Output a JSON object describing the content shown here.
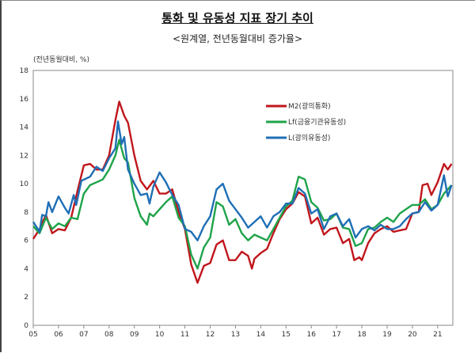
{
  "header": {
    "title": "통화 및 유동성 지표 장기 추이",
    "subtitle": "<원계열, 전년동월대비 증가율>"
  },
  "chart_data": {
    "type": "line",
    "title": "통화 및 유동성 지표 장기 추이",
    "subtitle": "<원계열, 전년동월대비 증가율>",
    "ylabel": "(전년동월대비, %)",
    "xlabel": "",
    "xlim": [
      2005,
      2021.6
    ],
    "ylim": [
      0,
      18
    ],
    "yticks": [
      0,
      2,
      4,
      6,
      8,
      10,
      12,
      14,
      16,
      18
    ],
    "xticks": [
      2005,
      2006,
      2007,
      2008,
      2009,
      2010,
      2011,
      2012,
      2013,
      2014,
      2015,
      2016,
      2017,
      2018,
      2019,
      2020,
      2021
    ],
    "xtick_labels": [
      "05",
      "06",
      "07",
      "08",
      "09",
      "10",
      "11",
      "12",
      "13",
      "14",
      "15",
      "16",
      "17",
      "18",
      "19",
      "20",
      "21"
    ],
    "grid": false,
    "legend_position": "top-right",
    "series": [
      {
        "name": "M2(광의통화)",
        "color": "#c0161c",
        "x": [
          2005.0,
          2005.25,
          2005.5,
          2005.75,
          2006.0,
          2006.25,
          2006.5,
          2006.75,
          2007.0,
          2007.25,
          2007.5,
          2007.75,
          2008.0,
          2008.25,
          2008.4,
          2008.6,
          2008.75,
          2009.0,
          2009.25,
          2009.5,
          2009.75,
          2010.0,
          2010.25,
          2010.5,
          2010.75,
          2011.0,
          2011.25,
          2011.5,
          2011.75,
          2012.0,
          2012.25,
          2012.5,
          2012.75,
          2013.0,
          2013.25,
          2013.5,
          2013.65,
          2013.75,
          2014.0,
          2014.25,
          2014.5,
          2014.75,
          2015.0,
          2015.25,
          2015.5,
          2015.75,
          2016.0,
          2016.25,
          2016.5,
          2016.75,
          2017.0,
          2017.25,
          2017.5,
          2017.7,
          2017.9,
          2018.0,
          2018.25,
          2018.5,
          2018.75,
          2019.0,
          2019.25,
          2019.5,
          2019.75,
          2020.0,
          2020.25,
          2020.4,
          2020.6,
          2020.75,
          2021.0,
          2021.25,
          2021.4,
          2021.55
        ],
        "values": [
          6.1,
          6.8,
          7.8,
          6.5,
          6.8,
          6.7,
          7.6,
          9.5,
          11.3,
          11.4,
          11.0,
          11.0,
          12.0,
          14.5,
          15.8,
          14.8,
          14.3,
          12.0,
          10.2,
          9.6,
          10.2,
          9.3,
          9.3,
          9.6,
          8.0,
          6.8,
          4.3,
          3.0,
          4.2,
          4.4,
          5.7,
          6.0,
          4.6,
          4.6,
          5.2,
          4.9,
          4.0,
          4.7,
          5.1,
          5.4,
          6.5,
          7.5,
          8.2,
          8.6,
          9.4,
          9.1,
          7.2,
          7.6,
          6.4,
          6.8,
          6.9,
          5.8,
          6.1,
          4.6,
          4.8,
          4.6,
          5.8,
          6.5,
          6.8,
          7.0,
          6.6,
          6.7,
          6.8,
          7.9,
          8.0,
          9.9,
          10.0,
          9.2,
          10.1,
          11.4,
          11.0,
          11.4
        ]
      },
      {
        "name": "Lf(금융기관유동성)",
        "color": "#1fa34a",
        "x": [
          2005.0,
          2005.25,
          2005.5,
          2005.75,
          2006.0,
          2006.25,
          2006.5,
          2006.75,
          2007.0,
          2007.25,
          2007.5,
          2007.75,
          2008.0,
          2008.25,
          2008.4,
          2008.6,
          2008.75,
          2009.0,
          2009.25,
          2009.5,
          2009.6,
          2009.75,
          2010.0,
          2010.25,
          2010.5,
          2010.75,
          2011.0,
          2011.25,
          2011.5,
          2011.75,
          2012.0,
          2012.25,
          2012.5,
          2012.75,
          2013.0,
          2013.25,
          2013.5,
          2013.75,
          2014.0,
          2014.25,
          2014.5,
          2014.75,
          2015.0,
          2015.25,
          2015.5,
          2015.75,
          2016.0,
          2016.25,
          2016.5,
          2016.75,
          2017.0,
          2017.25,
          2017.5,
          2017.75,
          2018.0,
          2018.25,
          2018.5,
          2018.75,
          2019.0,
          2019.25,
          2019.5,
          2019.75,
          2020.0,
          2020.25,
          2020.5,
          2020.75,
          2021.0,
          2021.25,
          2021.55
        ],
        "values": [
          7.0,
          6.5,
          7.6,
          6.8,
          7.2,
          7.0,
          7.6,
          7.5,
          9.3,
          9.9,
          10.1,
          10.3,
          11.0,
          12.0,
          13.1,
          11.8,
          11.5,
          9.0,
          7.7,
          7.1,
          7.9,
          7.7,
          8.2,
          8.7,
          9.1,
          7.6,
          7.0,
          5.0,
          4.0,
          5.5,
          6.2,
          8.7,
          8.4,
          7.1,
          7.5,
          6.5,
          6.0,
          6.4,
          6.2,
          6.0,
          6.8,
          7.6,
          8.4,
          8.8,
          10.5,
          10.3,
          8.7,
          8.3,
          7.4,
          7.5,
          7.9,
          6.9,
          6.8,
          5.6,
          5.8,
          6.8,
          6.9,
          7.3,
          7.6,
          7.3,
          7.9,
          8.2,
          8.5,
          8.5,
          8.9,
          8.2,
          8.5,
          9.3,
          9.9
        ]
      },
      {
        "name": "L(광의유동성)",
        "color": "#1f6fb5",
        "x": [
          2005.0,
          2005.25,
          2005.35,
          2005.5,
          2005.6,
          2005.75,
          2006.0,
          2006.25,
          2006.4,
          2006.6,
          2006.7,
          2006.9,
          2007.25,
          2007.5,
          2007.75,
          2008.0,
          2008.25,
          2008.35,
          2008.5,
          2008.6,
          2008.75,
          2009.0,
          2009.25,
          2009.5,
          2009.6,
          2009.75,
          2010.0,
          2010.25,
          2010.5,
          2010.75,
          2011.0,
          2011.25,
          2011.5,
          2011.75,
          2012.0,
          2012.25,
          2012.5,
          2012.75,
          2013.0,
          2013.25,
          2013.5,
          2013.75,
          2014.0,
          2014.25,
          2014.5,
          2014.75,
          2015.0,
          2015.25,
          2015.5,
          2015.75,
          2016.0,
          2016.25,
          2016.5,
          2016.75,
          2017.0,
          2017.25,
          2017.5,
          2017.75,
          2018.0,
          2018.25,
          2018.5,
          2018.75,
          2019.0,
          2019.25,
          2019.5,
          2019.75,
          2020.0,
          2020.25,
          2020.5,
          2020.75,
          2021.0,
          2021.25,
          2021.4,
          2021.55
        ],
        "values": [
          7.3,
          6.6,
          7.8,
          7.7,
          8.7,
          8.0,
          9.1,
          8.3,
          7.9,
          9.2,
          8.5,
          10.2,
          10.5,
          11.2,
          10.9,
          11.8,
          12.5,
          14.4,
          12.8,
          13.3,
          11.0,
          10.0,
          9.2,
          9.3,
          8.6,
          9.8,
          10.8,
          10.1,
          9.2,
          8.5,
          6.8,
          6.6,
          6.0,
          7.0,
          7.7,
          9.6,
          10.0,
          8.8,
          8.2,
          7.6,
          6.9,
          7.3,
          7.7,
          6.9,
          7.7,
          8.0,
          8.6,
          8.6,
          9.7,
          9.3,
          7.9,
          8.2,
          6.8,
          7.7,
          7.9,
          7.0,
          7.5,
          6.2,
          6.8,
          7.0,
          6.7,
          7.1,
          6.8,
          6.8,
          7.0,
          7.5,
          7.9,
          8.0,
          8.7,
          8.1,
          8.5,
          10.6,
          9.1,
          9.9
        ]
      }
    ]
  }
}
